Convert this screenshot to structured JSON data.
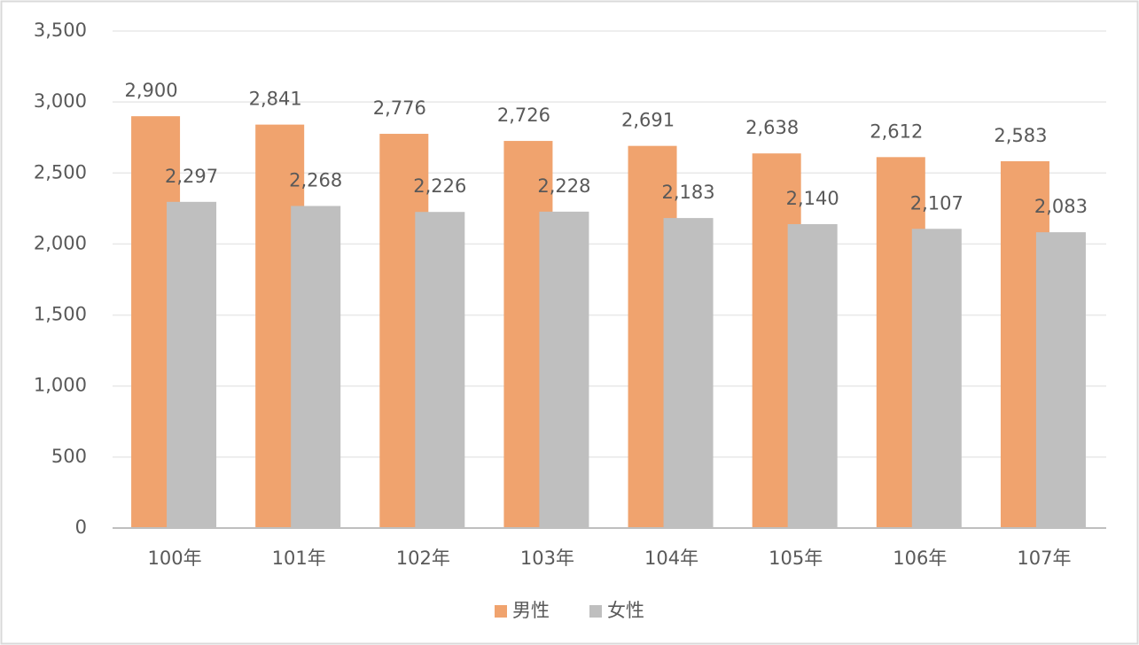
{
  "chart_data": {
    "type": "bar",
    "categories": [
      "100年",
      "101年",
      "102年",
      "103年",
      "104年",
      "105年",
      "106年",
      "107年"
    ],
    "series": [
      {
        "name": "男性",
        "color": "#f0a36e",
        "values": [
          2900,
          2841,
          2776,
          2726,
          2691,
          2638,
          2612,
          2583
        ],
        "value_labels": [
          "2,900",
          "2,841",
          "2,776",
          "2,726",
          "2,691",
          "2,638",
          "2,612",
          "2,583"
        ]
      },
      {
        "name": "女性",
        "color": "#bfbfbf",
        "values": [
          2297,
          2268,
          2226,
          2228,
          2183,
          2140,
          2107,
          2083
        ],
        "value_labels": [
          "2,297",
          "2,268",
          "2,226",
          "2,228",
          "2,183",
          "2,140",
          "2,107",
          "2,083"
        ]
      }
    ],
    "ylim": [
      0,
      3500
    ],
    "yticks": [
      0,
      500,
      {
        "value": 1000,
        "label": "1,000"
      },
      {
        "value": 1500,
        "label": "1,500"
      },
      {
        "value": 2000,
        "label": "2,000"
      },
      {
        "value": 2500,
        "label": "2,500"
      },
      {
        "value": 3000,
        "label": "3,000"
      },
      {
        "value": 3500,
        "label": "3,500"
      }
    ],
    "grid": true,
    "legend": "bottom"
  }
}
